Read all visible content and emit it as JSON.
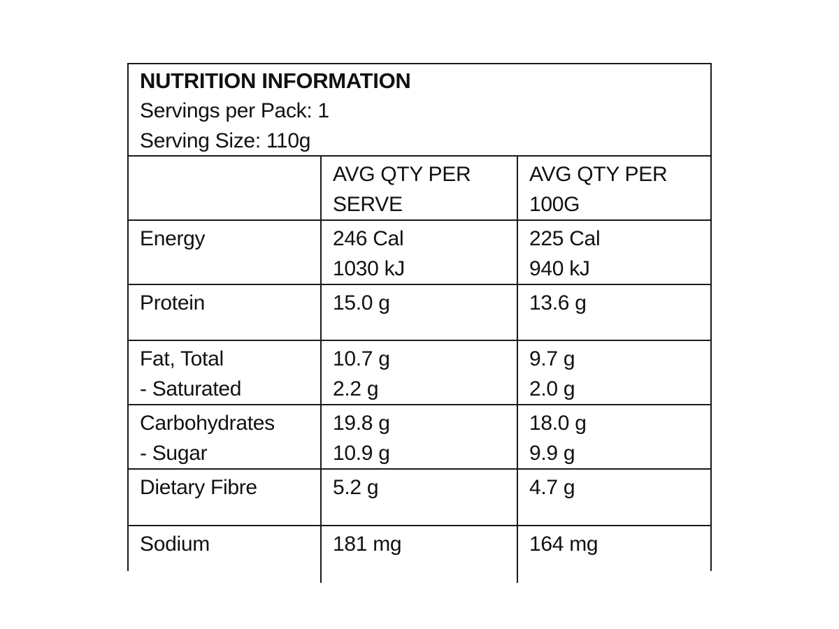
{
  "panel": {
    "title": "NUTRITION INFORMATION",
    "servings_per_pack": "Servings per Pack: 1",
    "serving_size": "Serving Size: 110g",
    "col_headers": {
      "nutrient": "",
      "serve_line1": "AVG QTY PER",
      "serve_line2": "SERVE",
      "per100_line1": "AVG QTY PER",
      "per100_line2": "100G"
    },
    "rows": [
      {
        "nutrient": {
          "line1": "Energy",
          "line2": ""
        },
        "per_serve": {
          "line1": "246 Cal",
          "line2": "1030 kJ"
        },
        "per_100g": {
          "line1": "225 Cal",
          "line2": "940 kJ"
        }
      },
      {
        "nutrient": {
          "line1": "Protein",
          "line2": ""
        },
        "per_serve": {
          "line1": "15.0 g",
          "line2": ""
        },
        "per_100g": {
          "line1": "13.6 g",
          "line2": ""
        }
      },
      {
        "nutrient": {
          "line1": "Fat, Total",
          "line2": "- Saturated"
        },
        "per_serve": {
          "line1": "10.7 g",
          "line2": "2.2 g"
        },
        "per_100g": {
          "line1": "9.7 g",
          "line2": "2.0 g"
        }
      },
      {
        "nutrient": {
          "line1": "Carbohydrates",
          "line2": "- Sugar"
        },
        "per_serve": {
          "line1": "19.8 g",
          "line2": "10.9 g"
        },
        "per_100g": {
          "line1": "18.0 g",
          "line2": "9.9 g"
        }
      },
      {
        "nutrient": {
          "line1": "Dietary Fibre",
          "line2": ""
        },
        "per_serve": {
          "line1": "5.2 g",
          "line2": ""
        },
        "per_100g": {
          "line1": "4.7 g",
          "line2": ""
        }
      },
      {
        "nutrient": {
          "line1": "Sodium",
          "line2": ""
        },
        "per_serve": {
          "line1": "181 mg",
          "line2": ""
        },
        "per_100g": {
          "line1": "164 mg",
          "line2": ""
        }
      }
    ],
    "colors": {
      "text": "#111111",
      "border": "#1a1a1a",
      "background": "#ffffff"
    }
  }
}
